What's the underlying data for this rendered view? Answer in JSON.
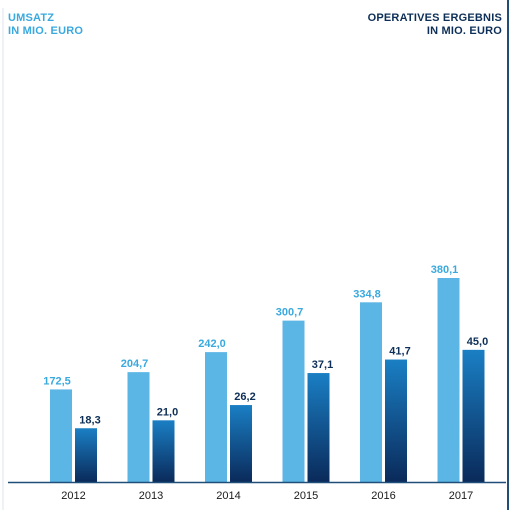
{
  "header": {
    "left_line1": "UMSATZ",
    "left_line2": "IN MIO. EURO",
    "right_line1": "OPERATIVES ERGEBNIS",
    "right_line2": "IN MIO. EURO"
  },
  "colors": {
    "umsatz_bar": "#5bb6e6",
    "umsatz_label": "#3aa9de",
    "ergebnis_top": "#1a7fc4",
    "ergebnis_bottom": "#0a2a5a",
    "ergebnis_label": "#0d2f57",
    "axis": "#1f4e79"
  },
  "chart_data": {
    "type": "bar",
    "categories": [
      "2012",
      "2013",
      "2014",
      "2015",
      "2016",
      "2017"
    ],
    "series": [
      {
        "name": "UMSATZ IN MIO. EURO",
        "values": [
          172.5,
          204.7,
          242.0,
          300.7,
          334.8,
          380.1
        ],
        "labels": [
          "172,5",
          "204,7",
          "242,0",
          "300,7",
          "334,8",
          "380,1"
        ]
      },
      {
        "name": "OPERATIVES ERGEBNIS IN MIO. EURO",
        "values": [
          18.3,
          21.0,
          26.2,
          37.1,
          41.7,
          45.0
        ],
        "labels": [
          "18,3",
          "21,0",
          "26,2",
          "37,1",
          "41,7",
          "45,0"
        ]
      }
    ],
    "title": "",
    "xlabel": "",
    "ylabel": "",
    "legend": "top-left and top-right",
    "grid": false
  }
}
